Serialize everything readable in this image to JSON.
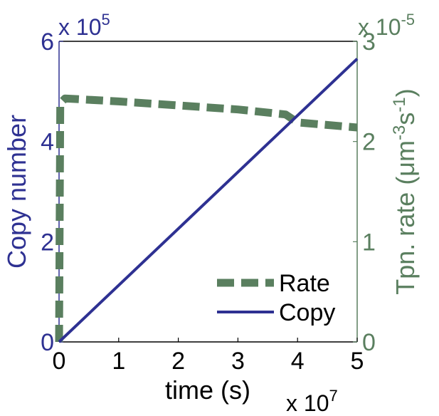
{
  "chart_data": {
    "type": "line",
    "x": {
      "label": "time (s)",
      "multiplier": "x 10",
      "multiplier_exp": "7",
      "range": [
        0,
        5
      ],
      "ticks": [
        "0",
        "1",
        "2",
        "3",
        "4",
        "5"
      ]
    },
    "y_left": {
      "label": "Copy number",
      "multiplier": "x 10",
      "multiplier_exp": "5",
      "range": [
        0,
        6
      ],
      "ticks": [
        "0",
        "2",
        "4",
        "6"
      ],
      "color": "#2e3192"
    },
    "y_right": {
      "label_main": "Tpn. rate (",
      "label_mu": "μ",
      "label_m": "m",
      "label_exp1": "-3",
      "label_s": "s",
      "label_exp2": "-1",
      "label_close": ")",
      "multiplier": "x 10",
      "multiplier_exp": "-5",
      "range": [
        0,
        3
      ],
      "ticks": [
        "0",
        "1",
        "2",
        "3"
      ],
      "color": "#5a7f5f"
    },
    "series": [
      {
        "name": "Rate",
        "axis": "right",
        "style": "dashed",
        "color": "#5a7f5f",
        "x": [
          0,
          0.02,
          0.1,
          1.0,
          2.0,
          3.0,
          3.8,
          4.0,
          5.0
        ],
        "y": [
          0,
          2.38,
          2.43,
          2.4,
          2.36,
          2.32,
          2.27,
          2.19,
          2.14
        ]
      },
      {
        "name": "Copy",
        "axis": "left",
        "style": "solid",
        "color": "#2e3192",
        "x": [
          0,
          5.0
        ],
        "y": [
          0,
          5.65
        ]
      }
    ],
    "legend": {
      "position": "bottom-right",
      "entries": [
        "Rate",
        "Copy"
      ]
    },
    "grid": false
  }
}
